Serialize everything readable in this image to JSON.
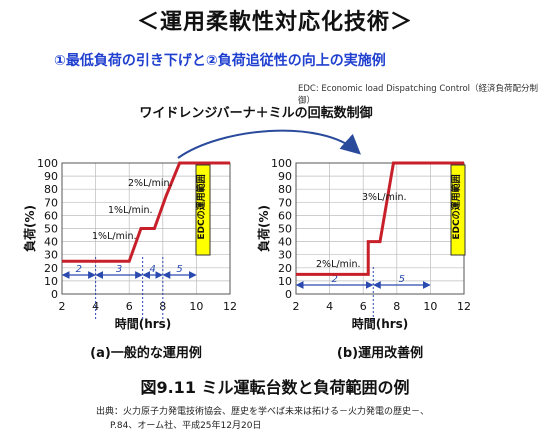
{
  "title": "＜運用柔軟性対応化技術＞",
  "subtitle": "①最低負荷の引き下げと②負荷追従性の向上の実施例",
  "edc_note": "EDC: Economic load Dispatching Control（経済負荷配分制御）",
  "arrow_label": "ワイドレンジバーナ＋ミルの回転数制御",
  "figure_caption": "図9.11  ミル運転台数と負荷範囲の例",
  "source_line1": "出典：火力原子力発電技術協会、歴史を学べば未来は拓ける－火力発電の歴史－、",
  "source_line2": "P.84、オーム社、平成25年12月20日",
  "chart_data": [
    {
      "type": "line",
      "caption": "(a)一般的な運用例",
      "xlabel": "時間(hrs)",
      "ylabel": "負荷(%)",
      "xlim": [
        2,
        12
      ],
      "ylim": [
        0,
        100
      ],
      "x_ticks": [
        2,
        4,
        6,
        8,
        10,
        12
      ],
      "y_ticks": [
        0,
        10,
        20,
        30,
        40,
        50,
        60,
        70,
        80,
        90,
        100
      ],
      "grid": true,
      "line_color": "#c8202a",
      "series": [
        {
          "x": [
            2,
            6,
            6.7,
            7.5,
            8.2,
            9.0,
            12
          ],
          "y": [
            25,
            25,
            50,
            50,
            75,
            100,
            100
          ]
        }
      ],
      "rate_labels": [
        "1%L/min.",
        "1%L/min.",
        "2%L/min."
      ],
      "interval_labels": [
        "2",
        "3",
        "4",
        "5"
      ],
      "interval_bounds": [
        2,
        4,
        6.8,
        8,
        10
      ],
      "edc_label": "EDCの運用範囲"
    },
    {
      "type": "line",
      "caption": "(b)運用改善例",
      "xlabel": "時間(hrs)",
      "ylabel": "負荷(%)",
      "xlim": [
        2,
        12
      ],
      "ylim": [
        0,
        100
      ],
      "x_ticks": [
        2,
        4,
        6,
        8,
        10,
        12
      ],
      "y_ticks": [
        0,
        10,
        20,
        30,
        40,
        50,
        60,
        70,
        80,
        90,
        100
      ],
      "grid": true,
      "line_color": "#c8202a",
      "series": [
        {
          "x": [
            2,
            6.3,
            6.3,
            7.0,
            7.8,
            12
          ],
          "y": [
            15,
            15,
            40,
            40,
            100,
            100
          ]
        }
      ],
      "rate_labels": [
        "2%L/min.",
        "3%L/min."
      ],
      "interval_labels": [
        "2",
        "5"
      ],
      "interval_bounds": [
        2,
        6.6,
        10
      ],
      "edc_label": "EDCの運用範囲"
    }
  ]
}
